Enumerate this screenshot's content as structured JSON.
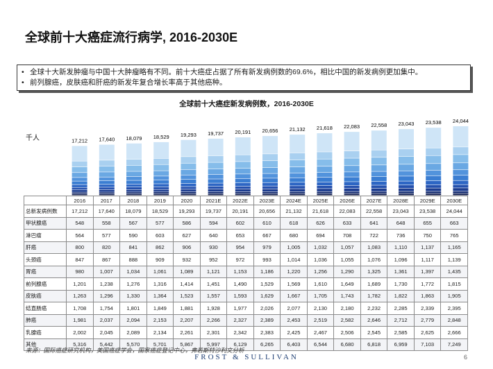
{
  "title": "全球前十大癌症流行病学, 2016-2030E",
  "notes": [
    "全球十大新发肿瘤与中国十大肿瘤略有不同。前十大癌症占据了所有新发病例数的69.6%，相比中国的新发病例更加集中。",
    "前列腺癌，皮肤癌和肝癌的新发年复合增长率高于其他癌种。"
  ],
  "bullet_glyph": "•",
  "source": "来源：国际癌症研究机构，美国癌症学会，国家癌症登记中心，弗若斯特沙利文分析",
  "brand": "FROST & SULLIVAN",
  "page_number": "6",
  "colors": [
    "#0d1a4d",
    "#142b70",
    "#1c3c8f",
    "#2450ad",
    "#2d66c4",
    "#3b7ed2",
    "#5293dc",
    "#6aa8e3",
    "#86bdea",
    "#a9d0f0",
    "#cfe5f7"
  ],
  "chart_data": {
    "type": "bar",
    "stacked": true,
    "title": "全球前十大癌症新发病例数，2016-2030E",
    "unit": "千人",
    "categories": [
      "2016",
      "2017",
      "2018",
      "2019",
      "2020",
      "2021E",
      "2022E",
      "2023E",
      "2024E",
      "2025E",
      "2026E",
      "2027E",
      "2028E",
      "2029E",
      "2030E"
    ],
    "totals": [
      "17,212",
      "17,640",
      "18,079",
      "18,529",
      "19,293",
      "19,737",
      "20,191",
      "20,656",
      "21,132",
      "21,618",
      "22,083",
      "22,558",
      "23,043",
      "23,538",
      "24,044"
    ],
    "total_label": "总新发病例数",
    "series": [
      {
        "name": "甲状腺癌",
        "values": [
          548,
          558,
          567,
          577,
          586,
          594,
          602,
          610,
          618,
          626,
          633,
          641,
          648,
          655,
          663
        ]
      },
      {
        "name": "淋巴瘤",
        "values": [
          564,
          577,
          590,
          603,
          627,
          640,
          653,
          667,
          680,
          694,
          708,
          722,
          736,
          750,
          765
        ]
      },
      {
        "name": "肝癌",
        "values": [
          800,
          820,
          841,
          862,
          906,
          930,
          954,
          979,
          1005,
          1032,
          1057,
          1083,
          1110,
          1137,
          1165
        ]
      },
      {
        "name": "头颈癌",
        "values": [
          847,
          867,
          888,
          909,
          932,
          952,
          972,
          993,
          1014,
          1036,
          1055,
          1076,
          1096,
          1117,
          1139
        ]
      },
      {
        "name": "胃癌",
        "values": [
          980,
          1007,
          1034,
          1061,
          1089,
          1121,
          1153,
          1186,
          1220,
          1256,
          1290,
          1325,
          1361,
          1397,
          1435
        ]
      },
      {
        "name": "前列腺癌",
        "values": [
          1201,
          1238,
          1276,
          1316,
          1414,
          1451,
          1490,
          1529,
          1569,
          1610,
          1649,
          1689,
          1730,
          1772,
          1815
        ]
      },
      {
        "name": "皮肤癌",
        "values": [
          1263,
          1296,
          1330,
          1364,
          1523,
          1557,
          1593,
          1629,
          1667,
          1705,
          1743,
          1782,
          1822,
          1863,
          1905
        ]
      },
      {
        "name": "结直肠癌",
        "values": [
          1708,
          1754,
          1801,
          1849,
          1881,
          1928,
          1977,
          2026,
          2077,
          2130,
          2180,
          2232,
          2285,
          2339,
          2395
        ]
      },
      {
        "name": "肺癌",
        "values": [
          1981,
          2037,
          2094,
          2153,
          2207,
          2266,
          2327,
          2389,
          2453,
          2519,
          2582,
          2646,
          2712,
          2779,
          2848
        ]
      },
      {
        "name": "乳腺癌",
        "values": [
          2002,
          2045,
          2089,
          2134,
          2261,
          2301,
          2342,
          2383,
          2425,
          2467,
          2506,
          2545,
          2585,
          2625,
          2666
        ]
      },
      {
        "name": "其他",
        "values": [
          5316,
          5442,
          5570,
          5701,
          5867,
          5997,
          6129,
          6265,
          6403,
          6544,
          6680,
          6818,
          6959,
          7103,
          7249
        ]
      }
    ]
  }
}
